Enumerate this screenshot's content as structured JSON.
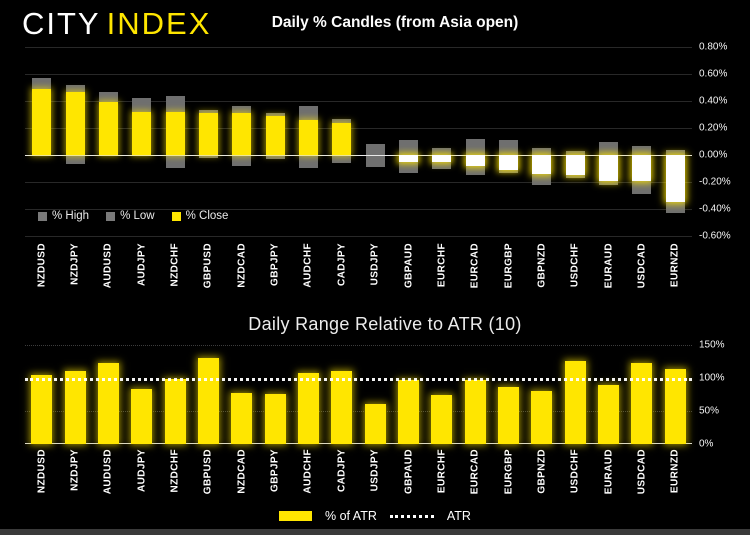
{
  "brand": {
    "city": "CITY",
    "index": "INDEX"
  },
  "colors": {
    "background": "#000000",
    "accent_yellow": "#ffe600",
    "range_gray": "#6f6f6f",
    "down_white": "#ffffff",
    "zero_line": "#e8e8e8"
  },
  "chart_data": [
    {
      "type": "bar",
      "subtype": "daily-percent-candles",
      "title": "Daily % Candles (from Asia open)",
      "categories": [
        "NZDUSD",
        "NZDJPY",
        "AUDUSD",
        "AUDJPY",
        "NZDCHF",
        "GBPUSD",
        "NZDCAD",
        "GBPJPY",
        "AUDCHF",
        "CADJPY",
        "USDJPY",
        "GBPAUD",
        "EURCHF",
        "EURCAD",
        "EURGBP",
        "GBPNZD",
        "USDCHF",
        "EURAUD",
        "USDCAD",
        "EURNZD"
      ],
      "series": [
        {
          "name": "% High",
          "color": "#7a7a7a",
          "values": [
            0.57,
            0.52,
            0.47,
            0.42,
            0.44,
            0.33,
            0.36,
            0.31,
            0.36,
            0.27,
            0.08,
            0.11,
            0.05,
            0.12,
            0.11,
            0.05,
            0.03,
            0.1,
            0.07,
            0.04
          ]
        },
        {
          "name": "% Low",
          "color": "#7a7a7a",
          "values": [
            -0.01,
            -0.07,
            -0.01,
            -0.01,
            -0.1,
            -0.02,
            -0.08,
            -0.03,
            -0.1,
            -0.06,
            -0.09,
            -0.13,
            -0.1,
            -0.15,
            -0.13,
            -0.22,
            -0.17,
            -0.22,
            -0.29,
            -0.43
          ]
        },
        {
          "name": "% Close",
          "color": "#ffe600",
          "values": [
            0.49,
            0.47,
            0.39,
            0.32,
            0.32,
            0.31,
            0.31,
            0.29,
            0.26,
            0.24,
            0.0,
            -0.05,
            -0.05,
            -0.08,
            -0.11,
            -0.14,
            -0.15,
            -0.19,
            -0.19,
            -0.35
          ]
        }
      ],
      "ylim": [
        -0.6,
        0.8
      ],
      "y_ticks": [
        "0.80%",
        "0.60%",
        "0.40%",
        "0.20%",
        "0.00%",
        "-0.20%",
        "-0.40%",
        "-0.60%"
      ],
      "grid": true,
      "legend_position": "bottom-left"
    },
    {
      "type": "bar",
      "title": "Daily Range Relative to ATR (10)",
      "categories": [
        "NZDUSD",
        "NZDJPY",
        "AUDUSD",
        "AUDJPY",
        "NZDCHF",
        "GBPUSD",
        "NZDCAD",
        "GBPJPY",
        "AUDCHF",
        "CADJPY",
        "USDJPY",
        "GBPAUD",
        "EURCHF",
        "EURCAD",
        "EURGBP",
        "GBPNZD",
        "USDCHF",
        "EURAUD",
        "USDCAD",
        "EURNZD"
      ],
      "series": [
        {
          "name": "% of ATR",
          "color": "#ffe600",
          "values": [
            105,
            110,
            122,
            84,
            99,
            130,
            77,
            76,
            108,
            110,
            60,
            97,
            74,
            97,
            87,
            81,
            126,
            90,
            122,
            114
          ]
        }
      ],
      "reference_line": {
        "name": "ATR",
        "value": 100,
        "style": "dotted-white"
      },
      "ylim": [
        0,
        150
      ],
      "y_ticks": [
        "150%",
        "100%",
        "50%",
        "0%"
      ],
      "grid": true,
      "legend_position": "bottom-center"
    }
  ]
}
